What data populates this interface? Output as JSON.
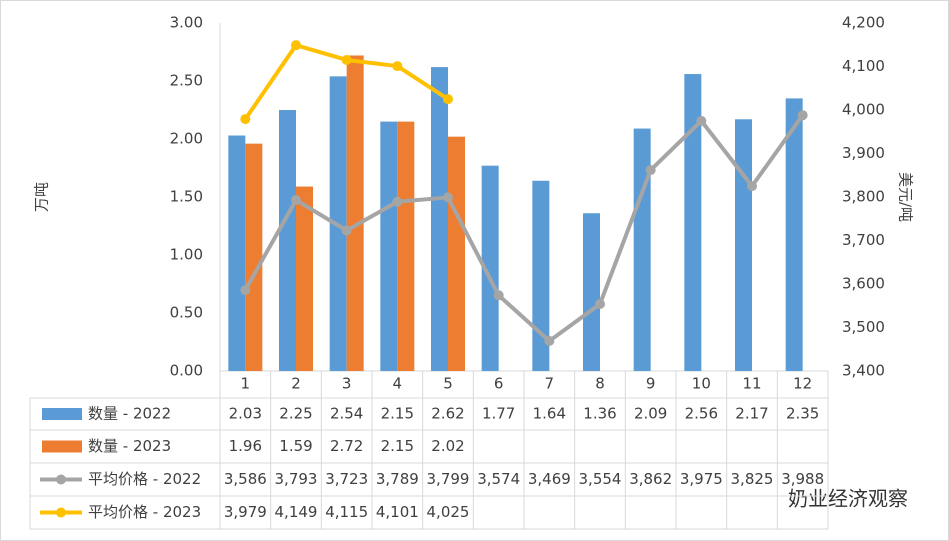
{
  "chart_data": {
    "type": "bar",
    "categories": [
      "1",
      "2",
      "3",
      "4",
      "5",
      "6",
      "7",
      "8",
      "9",
      "10",
      "11",
      "12"
    ],
    "series": [
      {
        "name": "数量 - 2022",
        "type": "bar",
        "color": "#5b9bd5",
        "values": [
          2.03,
          2.25,
          2.54,
          2.15,
          2.62,
          1.77,
          1.64,
          1.36,
          2.09,
          2.56,
          2.17,
          2.35
        ]
      },
      {
        "name": "数量 - 2023",
        "type": "bar",
        "color": "#ed7d31",
        "values": [
          1.96,
          1.59,
          2.72,
          2.15,
          2.02,
          null,
          null,
          null,
          null,
          null,
          null,
          null
        ]
      },
      {
        "name": "平均价格 - 2022",
        "type": "line",
        "axis": "y2",
        "color": "#a5a5a5",
        "values": [
          3586,
          3793,
          3723,
          3789,
          3799,
          3574,
          3469,
          3554,
          3862,
          3975,
          3825,
          3988
        ],
        "value_labels": [
          "3,586",
          "3,793",
          "3,723",
          "3,789",
          "3,799",
          "3,574",
          "3,469",
          "3,554",
          "3,862",
          "3,975",
          "3,825",
          "3,988"
        ]
      },
      {
        "name": "平均价格 - 2023",
        "type": "line",
        "axis": "y2",
        "color": "#ffc000",
        "values": [
          3979,
          4149,
          4115,
          4101,
          4025,
          null,
          null,
          null,
          null,
          null,
          null,
          null
        ],
        "value_labels": [
          "3,979",
          "4,149",
          "4,115",
          "4,101",
          "4,025",
          null,
          null,
          null,
          null,
          null,
          null,
          null
        ]
      }
    ],
    "ylabel": "万吨",
    "y2label": "美元/吨",
    "ylim": [
      0,
      3
    ],
    "yticks": [
      {
        "value": 0,
        "label": "0.00"
      },
      {
        "value": 0.5,
        "label": "0.50"
      },
      {
        "value": 1,
        "label": "1.00"
      },
      {
        "value": 1.5,
        "label": "1.50"
      },
      {
        "value": 2,
        "label": "2.00"
      },
      {
        "value": 2.5,
        "label": "2.50"
      },
      {
        "value": 3,
        "label": "3.00"
      }
    ],
    "y2lim": [
      3400,
      4200
    ],
    "y2ticks": [
      {
        "value": 3400,
        "label": "3,400"
      },
      {
        "value": 3500,
        "label": "3,500"
      },
      {
        "value": 3600,
        "label": "3,600"
      },
      {
        "value": 3700,
        "label": "3,700"
      },
      {
        "value": 3800,
        "label": "3,800"
      },
      {
        "value": 3900,
        "label": "3,900"
      },
      {
        "value": 4000,
        "label": "4,000"
      },
      {
        "value": 4100,
        "label": "4,100"
      },
      {
        "value": 4200,
        "label": "4,200"
      }
    ],
    "grid": false,
    "watermark": "奶业经济观察"
  }
}
